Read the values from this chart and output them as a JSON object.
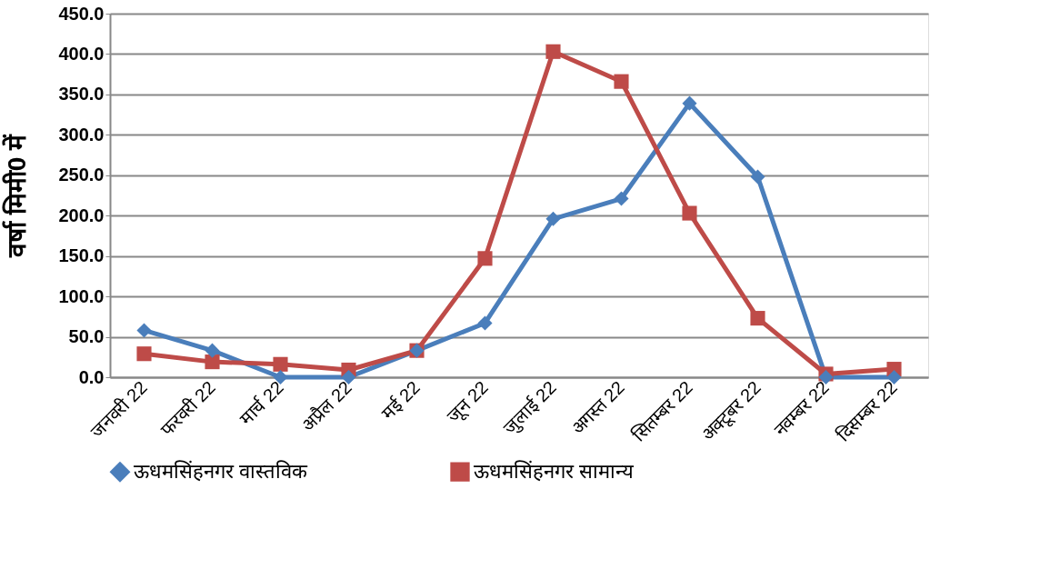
{
  "chart_data": {
    "type": "line",
    "ylabel": "वर्षा मिमी0 में",
    "categories": [
      "जनवरी 22",
      "फरवरी 22",
      "मार्च 22",
      "अप्रैल 22",
      "मई 22",
      "जून 22",
      "जुलाई 22",
      "अगस्त 22",
      "सितम्बर 22",
      "अक्टूबर 22",
      "नवम्बर 22",
      "दिसम्बर 22"
    ],
    "series": [
      {
        "name": "ऊधमसिंहनगर वास्तविक",
        "color": "#4a7ebb",
        "marker": "diamond",
        "values": [
          58,
          33,
          0,
          0,
          33,
          67,
          196,
          221,
          339,
          248,
          0,
          0
        ]
      },
      {
        "name": "ऊधमसिंहनगर सामान्य",
        "color": "#be4b48",
        "marker": "square",
        "values": [
          29,
          19,
          16,
          9,
          33,
          147,
          403,
          366,
          203,
          73,
          4,
          10
        ]
      }
    ],
    "ylim": [
      0,
      450
    ],
    "yticks": [
      {
        "value": 0,
        "label": "0.0"
      },
      {
        "value": 50,
        "label": "50.0"
      },
      {
        "value": 100,
        "label": "100.0"
      },
      {
        "value": 150,
        "label": "150.0"
      },
      {
        "value": 200,
        "label": "200.0"
      },
      {
        "value": 250,
        "label": "250.0"
      },
      {
        "value": 300,
        "label": "300.0"
      },
      {
        "value": 350,
        "label": "350.0"
      },
      {
        "value": 400,
        "label": "400.0"
      },
      {
        "value": 450,
        "label": "450.0"
      }
    ],
    "grid": "y",
    "legend": "bottom",
    "line_style": "solid"
  }
}
